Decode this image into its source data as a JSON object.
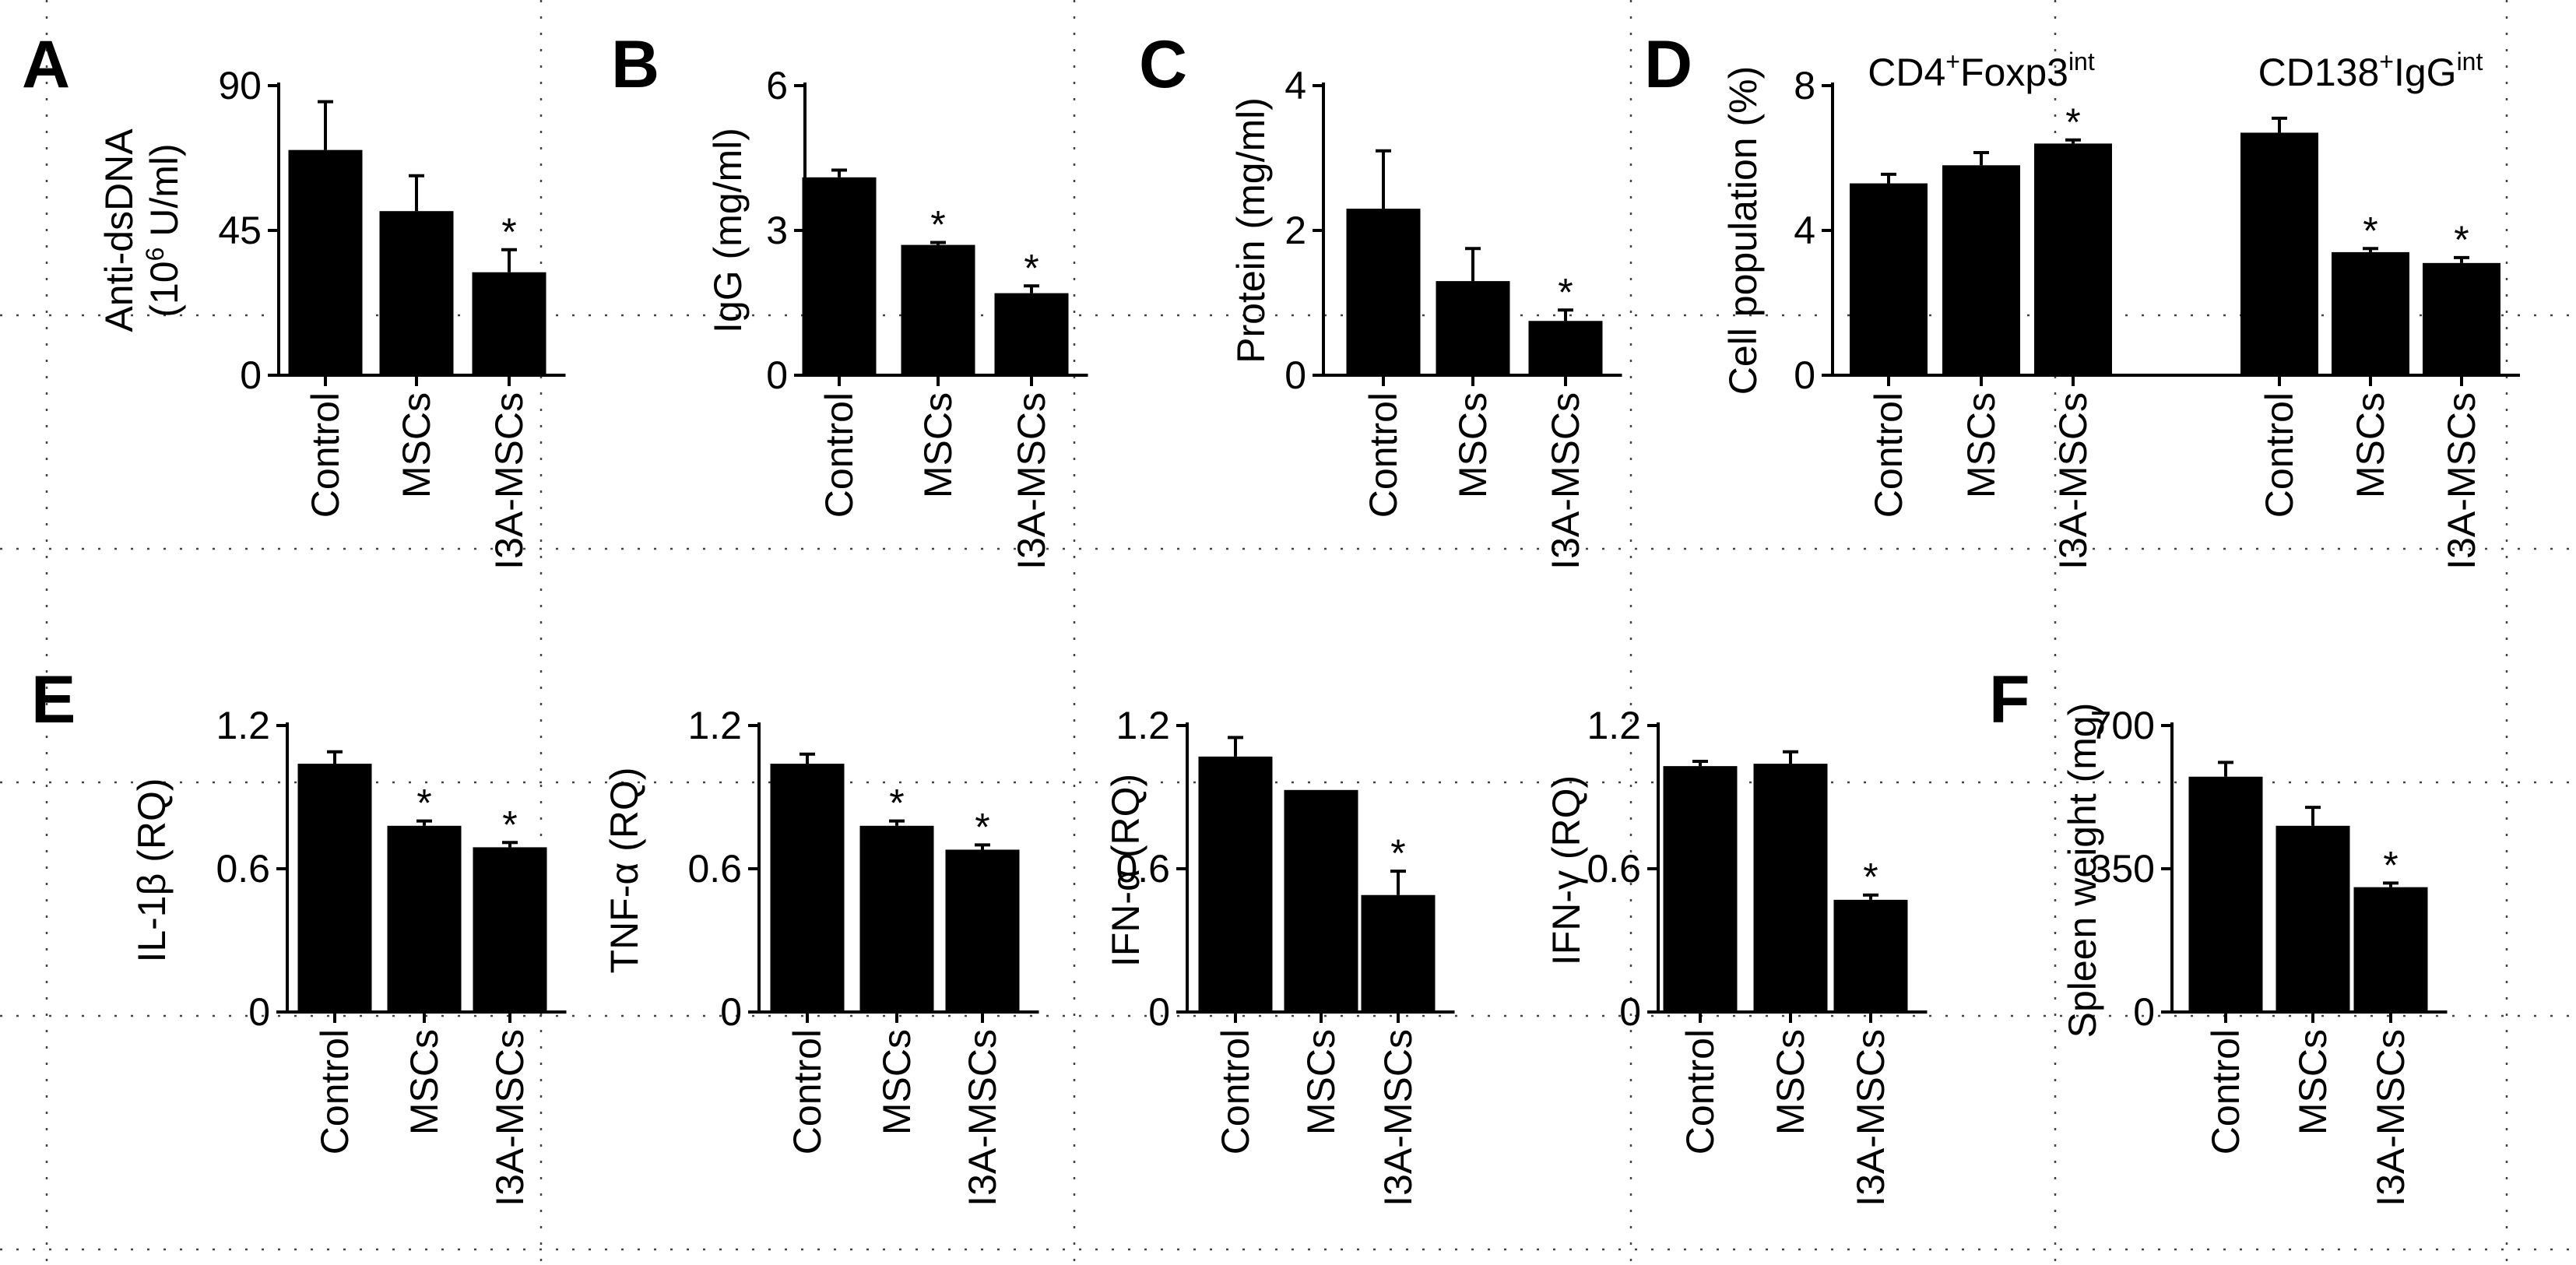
{
  "figure": {
    "panel_labels": [
      "A",
      "B",
      "C",
      "D",
      "E",
      "F"
    ]
  },
  "chart_data": [
    {
      "id": "A",
      "type": "bar",
      "panel_label": "A",
      "ylabel_lines": [
        "Anti-dsDNA",
        "(10^6 U/ml)"
      ],
      "ylabel_parts": [
        {
          "text": "Anti-dsDNA"
        },
        {
          "pre": "(10",
          "sup": "6",
          "post": " U/ml)"
        }
      ],
      "ylim": [
        0,
        90
      ],
      "yticks": [
        "0",
        "45",
        "90"
      ],
      "categories": [
        "Control",
        "MSCs",
        "I3A-MSCs"
      ],
      "values": [
        70,
        51,
        32
      ],
      "errors": [
        15,
        11,
        7
      ],
      "significant": [
        false,
        false,
        true
      ],
      "sig_marker": "*"
    },
    {
      "id": "B",
      "type": "bar",
      "panel_label": "B",
      "ylabel_lines": [
        "IgG (mg/ml)"
      ],
      "ylim": [
        0,
        6
      ],
      "yticks": [
        "0",
        "3",
        "6"
      ],
      "categories": [
        "Control",
        "MSCs",
        "I3A-MSCs"
      ],
      "values": [
        4.1,
        2.7,
        1.7
      ],
      "errors": [
        0.15,
        0.05,
        0.15
      ],
      "significant": [
        false,
        true,
        true
      ],
      "sig_marker": "*"
    },
    {
      "id": "C",
      "type": "bar",
      "panel_label": "C",
      "ylabel_lines": [
        "Protein (mg/ml)"
      ],
      "ylim": [
        0,
        4
      ],
      "yticks": [
        "0",
        "2",
        "4"
      ],
      "categories": [
        "Control",
        "MSCs",
        "I3A-MSCs"
      ],
      "values": [
        2.3,
        1.3,
        0.75
      ],
      "errors": [
        0.8,
        0.45,
        0.15
      ],
      "significant": [
        false,
        false,
        true
      ],
      "sig_marker": "*"
    },
    {
      "id": "D",
      "type": "bar",
      "panel_label": "D",
      "ylabel_lines": [
        "Cell population (%)"
      ],
      "ylim": [
        0,
        8
      ],
      "yticks": [
        "0",
        "4",
        "8"
      ],
      "groups": [
        {
          "label": "CD4+Foxp3int",
          "label_parts": [
            "CD4",
            "+",
            "Foxp3",
            "int"
          ]
        },
        {
          "label": "CD138+IgGint",
          "label_parts": [
            "CD138",
            "+",
            "IgG",
            "int"
          ]
        }
      ],
      "categories": [
        "Control",
        "MSCs",
        "I3A-MSCs",
        "Control",
        "MSCs",
        "I3A-MSCs"
      ],
      "values": [
        5.3,
        5.8,
        6.4,
        6.7,
        3.4,
        3.1
      ],
      "errors": [
        0.25,
        0.35,
        0.1,
        0.4,
        0.1,
        0.15
      ],
      "significant": [
        false,
        false,
        true,
        false,
        true,
        true
      ],
      "sig_marker": "*"
    },
    {
      "id": "E1",
      "type": "bar",
      "panel_label": "E",
      "ylabel_lines": [
        "IL-1β (RQ)"
      ],
      "ylim": [
        0,
        1.2
      ],
      "yticks": [
        "0",
        "0.6",
        "1.2"
      ],
      "categories": [
        "Control",
        "MSCs",
        "I3A-MSCs"
      ],
      "values": [
        1.04,
        0.78,
        0.69
      ],
      "errors": [
        0.05,
        0.02,
        0.02
      ],
      "significant": [
        false,
        true,
        true
      ],
      "sig_marker": "*"
    },
    {
      "id": "E2",
      "type": "bar",
      "panel_label": "",
      "ylabel_lines": [
        "TNF-α (RQ)"
      ],
      "ylim": [
        0,
        1.2
      ],
      "yticks": [
        "0",
        "0.6",
        "1.2"
      ],
      "categories": [
        "Control",
        "MSCs",
        "I3A-MSCs"
      ],
      "values": [
        1.04,
        0.78,
        0.68
      ],
      "errors": [
        0.04,
        0.02,
        0.02
      ],
      "significant": [
        false,
        true,
        true
      ],
      "sig_marker": "*"
    },
    {
      "id": "E3",
      "type": "bar",
      "panel_label": "",
      "ylabel_lines": [
        "IFN-α (RQ)"
      ],
      "ylim": [
        0,
        1.2
      ],
      "yticks": [
        "0",
        "0.6",
        "1.2"
      ],
      "categories": [
        "Control",
        "MSCs",
        "I3A-MSCs"
      ],
      "values": [
        1.07,
        0.93,
        0.49
      ],
      "errors": [
        0.08,
        0.0,
        0.1
      ],
      "significant": [
        false,
        false,
        true
      ],
      "sig_marker": "*"
    },
    {
      "id": "E4",
      "type": "bar",
      "panel_label": "",
      "ylabel_lines": [
        "IFN-γ (RQ)"
      ],
      "ylim": [
        0,
        1.2
      ],
      "yticks": [
        "0",
        "0.6",
        "1.2"
      ],
      "categories": [
        "Control",
        "MSCs",
        "I3A-MSCs"
      ],
      "values": [
        1.03,
        1.04,
        0.47
      ],
      "errors": [
        0.02,
        0.05,
        0.02
      ],
      "significant": [
        false,
        false,
        true
      ],
      "sig_marker": "*"
    },
    {
      "id": "F",
      "type": "bar",
      "panel_label": "F",
      "ylabel_lines": [
        "Spleen weight (mg)"
      ],
      "ylim": [
        0,
        700
      ],
      "yticks": [
        "0",
        "350",
        "700"
      ],
      "categories": [
        "Control",
        "MSCs",
        "I3A-MSCs"
      ],
      "values": [
        575,
        455,
        305
      ],
      "errors": [
        35,
        45,
        10
      ],
      "significant": [
        false,
        false,
        true
      ],
      "sig_marker": "*"
    }
  ]
}
